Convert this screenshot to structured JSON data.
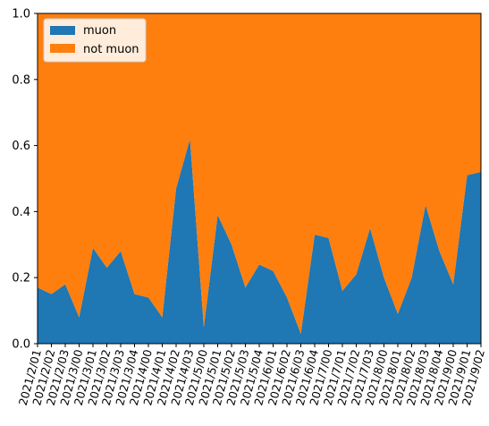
{
  "chart_data": {
    "type": "area",
    "stacked": true,
    "categories": [
      "2021/2/01",
      "2021/2/02",
      "2021/2/03",
      "2021/3/00",
      "2021/3/01",
      "2021/3/02",
      "2021/3/03",
      "2021/3/04",
      "2021/4/00",
      "2021/4/01",
      "2021/4/02",
      "2021/4/03",
      "2021/5/00",
      "2021/5/01",
      "2021/5/02",
      "2021/5/03",
      "2021/5/04",
      "2021/6/01",
      "2021/6/02",
      "2021/6/03",
      "2021/6/04",
      "2021/7/00",
      "2021/7/01",
      "2021/7/02",
      "2021/7/03",
      "2021/8/00",
      "2021/8/01",
      "2021/8/02",
      "2021/8/03",
      "2021/8/04",
      "2021/9/00",
      "2021/9/01",
      "2021/9/02"
    ],
    "series": [
      {
        "name": "muon",
        "color": "#1f77b4",
        "values": [
          0.17,
          0.15,
          0.18,
          0.08,
          0.29,
          0.23,
          0.28,
          0.15,
          0.14,
          0.08,
          0.47,
          0.62,
          0.05,
          0.39,
          0.3,
          0.17,
          0.24,
          0.22,
          0.14,
          0.03,
          0.33,
          0.32,
          0.16,
          0.21,
          0.35,
          0.2,
          0.09,
          0.2,
          0.42,
          0.28,
          0.18,
          0.51,
          0.52
        ]
      },
      {
        "name": "not muon",
        "color": "#ff7f0e",
        "values": [
          0.83,
          0.85,
          0.82,
          0.92,
          0.71,
          0.77,
          0.72,
          0.85,
          0.86,
          0.92,
          0.53,
          0.38,
          0.95,
          0.61,
          0.7,
          0.83,
          0.76,
          0.78,
          0.86,
          0.97,
          0.67,
          0.68,
          0.84,
          0.79,
          0.65,
          0.8,
          0.91,
          0.8,
          0.58,
          0.72,
          0.82,
          0.49,
          0.48
        ]
      }
    ],
    "ylim": [
      0,
      1.0
    ],
    "yticks": [
      "0.0",
      "0.2",
      "0.4",
      "0.6",
      "0.8",
      "1.0"
    ],
    "title": "",
    "xlabel": "",
    "ylabel": "",
    "legend_position": "top-left",
    "grid": false
  }
}
